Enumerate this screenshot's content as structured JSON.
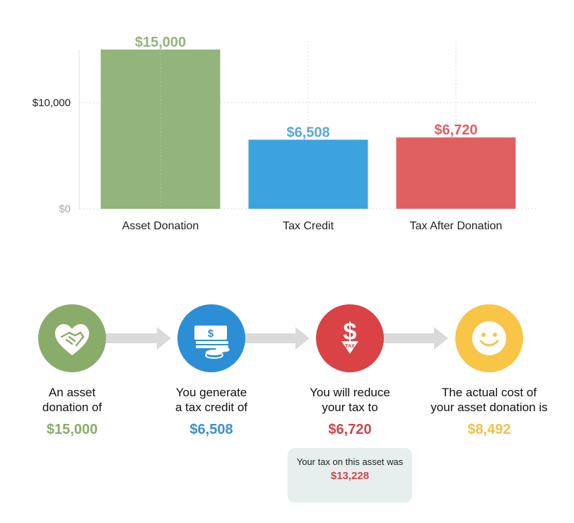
{
  "chart_data": {
    "type": "bar",
    "categories": [
      "Asset Donation",
      "Tax Credit",
      "Tax After Donation"
    ],
    "values": [
      15000,
      6508,
      6720
    ],
    "value_labels": [
      "$15,000",
      "$6,508",
      "$6,720"
    ],
    "colors": [
      "#93b47a",
      "#3da3df",
      "#e06061"
    ],
    "label_colors": [
      "#93b47a",
      "#5aa6dc",
      "#e06061"
    ],
    "ylim": [
      0,
      15000
    ],
    "yticks": [
      {
        "value": 0,
        "label": "$0"
      },
      {
        "value": 10000,
        "label": "$10,000"
      }
    ],
    "grid": true,
    "title": "",
    "xlabel": "",
    "ylabel": ""
  },
  "steps": [
    {
      "text_line1": "An asset",
      "text_line2": "donation of",
      "amount": "$15,000",
      "color": "#8aac6a",
      "amount_color": "#8aac6a",
      "icon": "handshake-heart-icon"
    },
    {
      "text_line1": "You generate",
      "text_line2": "a tax credit of",
      "amount": "$6,508",
      "color": "#2c8fd6",
      "amount_color": "#3d8fd0",
      "icon": "money-coins-icon"
    },
    {
      "text_line1": "You will reduce",
      "text_line2": "your tax to",
      "amount": "$6,720",
      "color": "#d94346",
      "amount_color": "#cf4549",
      "icon": "dollar-tax-icon"
    },
    {
      "text_line1": "The actual cost of",
      "text_line2": "your asset donation is",
      "amount": "$8,492",
      "color": "#f8c546",
      "amount_color": "#f4c04a",
      "icon": "smiley-face-icon"
    }
  ],
  "note": {
    "text": "Your tax on this asset was",
    "amount": "$13,228"
  },
  "icon_labels": {
    "tax": "TAX"
  }
}
